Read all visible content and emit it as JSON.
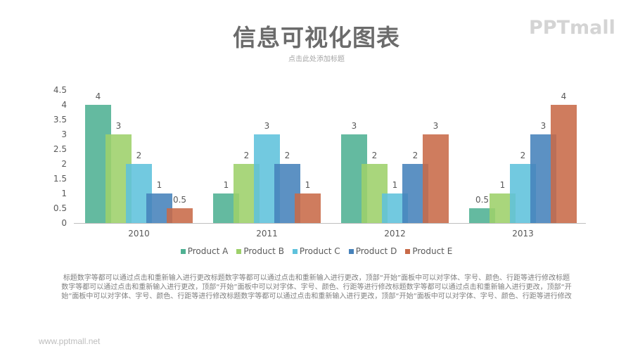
{
  "header": {
    "title": "信息可视化图表",
    "subtitle": "点击此处添加标题",
    "logo": "PPTmall"
  },
  "chart_data": {
    "type": "bar",
    "title": "",
    "xlabel": "",
    "ylabel": "",
    "ylim": [
      0,
      4.5
    ],
    "yticks": [
      "0",
      "0.5",
      "1",
      "1.5",
      "2",
      "2.5",
      "3",
      "3.5",
      "4",
      "4.5"
    ],
    "categories": [
      "2010",
      "2011",
      "2012",
      "2013"
    ],
    "series": [
      {
        "name": "Product A",
        "color": "#4fb193",
        "values": [
          4,
          1,
          3,
          0.5
        ]
      },
      {
        "name": "Product B",
        "color": "#9dd06a",
        "values": [
          3,
          2,
          2,
          1
        ]
      },
      {
        "name": "Product C",
        "color": "#5ec2dc",
        "values": [
          2,
          3,
          1,
          2
        ]
      },
      {
        "name": "Product D",
        "color": "#4682bb",
        "values": [
          1,
          2,
          2,
          3
        ]
      },
      {
        "name": "Product E",
        "color": "#c86a48",
        "values": [
          0.5,
          1,
          3,
          4
        ]
      }
    ],
    "grid": false,
    "legend_position": "bottom",
    "data_labels": true,
    "overlap": true
  },
  "legend": {
    "items": [
      "Product A",
      "Product B",
      "Product C",
      "Product D",
      "Product E"
    ]
  },
  "body_text": "标题数字等都可以通过点击和重新输入进行更改标题数字等都可以通过点击和重新输入进行更改，顶部“开始”面板中可以对字体、字号、颜色、行距等进行修改标题数字等都可以通过点击和重新输入进行更改，顶部“开始”面板中可以对字体、字号、颜色、行距等进行修改标题数字等都可以通过点击和重新输入进行更改，顶部“开始”面板中可以对字体、字号、颜色、行距等进行修改标题数字等都可以通过点击和重新输入进行更改，顶部“开始”面板中可以对字体、字号、颜色、行距等进行修改",
  "footer": {
    "url": "www.pptmall.net"
  }
}
